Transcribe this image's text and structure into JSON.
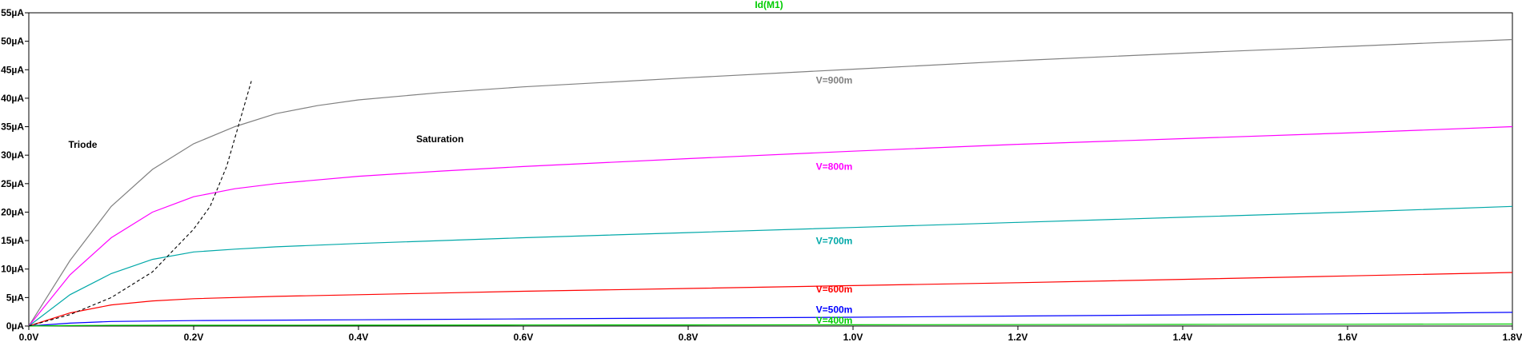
{
  "chart_data": {
    "type": "line",
    "title": "Id(M1)",
    "title_color": "#00cc00",
    "xlabel": "",
    "ylabel": "",
    "xlim": [
      0,
      1.8
    ],
    "ylim": [
      0,
      55
    ],
    "x_ticks": [
      0,
      0.2,
      0.4,
      0.6,
      0.8,
      1.0,
      1.2,
      1.4,
      1.6,
      1.8
    ],
    "x_tick_labels": [
      "0.0V",
      "0.2V",
      "0.4V",
      "0.6V",
      "0.8V",
      "1.0V",
      "1.2V",
      "1.4V",
      "1.6V",
      "1.8V"
    ],
    "y_ticks": [
      0,
      5,
      10,
      15,
      20,
      25,
      30,
      35,
      40,
      45,
      50,
      55
    ],
    "y_tick_labels": [
      "0µA",
      "5µA",
      "10µA",
      "15µA",
      "20µA",
      "25µA",
      "30µA",
      "35µA",
      "40µA",
      "45µA",
      "50µA",
      "55µA"
    ],
    "grid": false,
    "series": [
      {
        "name": "V=900m",
        "color": "#808080",
        "label_at": [
          0.955,
          42.6
        ],
        "x": [
          0,
          0.05,
          0.1,
          0.15,
          0.2,
          0.25,
          0.3,
          0.35,
          0.4,
          0.5,
          0.6,
          0.8,
          1.0,
          1.2,
          1.4,
          1.6,
          1.8
        ],
        "y": [
          0,
          11.5,
          21,
          27.5,
          32,
          35,
          37.3,
          38.7,
          39.7,
          41,
          42,
          43.6,
          45.1,
          46.6,
          47.9,
          49.1,
          50.3
        ]
      },
      {
        "name": "V=800m",
        "color": "#ff00ff",
        "label_at": [
          0.955,
          27.4
        ],
        "x": [
          0,
          0.05,
          0.1,
          0.15,
          0.2,
          0.25,
          0.3,
          0.4,
          0.5,
          0.6,
          0.8,
          1.0,
          1.2,
          1.4,
          1.6,
          1.8
        ],
        "y": [
          0,
          9,
          15.5,
          20,
          22.7,
          24.1,
          25,
          26.3,
          27.2,
          28,
          29.4,
          30.7,
          31.9,
          32.9,
          33.9,
          35
        ]
      },
      {
        "name": "V=700m",
        "color": "#00a8a8",
        "label_at": [
          0.955,
          14.4
        ],
        "x": [
          0,
          0.05,
          0.1,
          0.15,
          0.2,
          0.25,
          0.3,
          0.4,
          0.5,
          0.6,
          0.8,
          1.0,
          1.2,
          1.4,
          1.6,
          1.8
        ],
        "y": [
          0,
          5.5,
          9.2,
          11.7,
          13,
          13.5,
          13.9,
          14.5,
          15,
          15.5,
          16.4,
          17.3,
          18.2,
          19.1,
          20,
          21
        ]
      },
      {
        "name": "V=600m",
        "color": "#ff0000",
        "label_at": [
          0.955,
          5.9
        ],
        "x": [
          0,
          0.05,
          0.1,
          0.15,
          0.2,
          0.3,
          0.4,
          0.5,
          0.6,
          0.8,
          1.0,
          1.2,
          1.4,
          1.6,
          1.8
        ],
        "y": [
          0,
          2.3,
          3.7,
          4.4,
          4.8,
          5.2,
          5.5,
          5.8,
          6.1,
          6.6,
          7.1,
          7.6,
          8.2,
          8.8,
          9.4
        ]
      },
      {
        "name": "V=500m",
        "color": "#0000ff",
        "label_at": [
          0.955,
          2.3
        ],
        "x": [
          0,
          0.05,
          0.1,
          0.2,
          0.4,
          0.6,
          0.8,
          1.0,
          1.2,
          1.4,
          1.6,
          1.8
        ],
        "y": [
          0,
          0.5,
          0.8,
          0.95,
          1.1,
          1.25,
          1.4,
          1.55,
          1.75,
          1.95,
          2.15,
          2.4
        ]
      },
      {
        "name": "V=400m",
        "color": "#00cc00",
        "label_at": [
          0.955,
          0.4
        ],
        "x": [
          0,
          0.05,
          0.1,
          0.2,
          0.4,
          0.6,
          0.8,
          1.0,
          1.2,
          1.4,
          1.6,
          1.8
        ],
        "y": [
          0,
          0.08,
          0.12,
          0.14,
          0.16,
          0.18,
          0.2,
          0.22,
          0.25,
          0.28,
          0.31,
          0.35
        ]
      }
    ],
    "boundary": {
      "style": "dashed",
      "color": "#000000",
      "x": [
        0,
        0.05,
        0.1,
        0.15,
        0.2,
        0.22,
        0.24,
        0.26,
        0.27
      ],
      "y": [
        0,
        2,
        5,
        9.5,
        17,
        21,
        28,
        38,
        43
      ]
    },
    "annotations": [
      {
        "text": "Triode",
        "at": [
          0.048,
          31.3
        ]
      },
      {
        "text": "Saturation",
        "at": [
          0.47,
          32.3
        ]
      }
    ]
  }
}
